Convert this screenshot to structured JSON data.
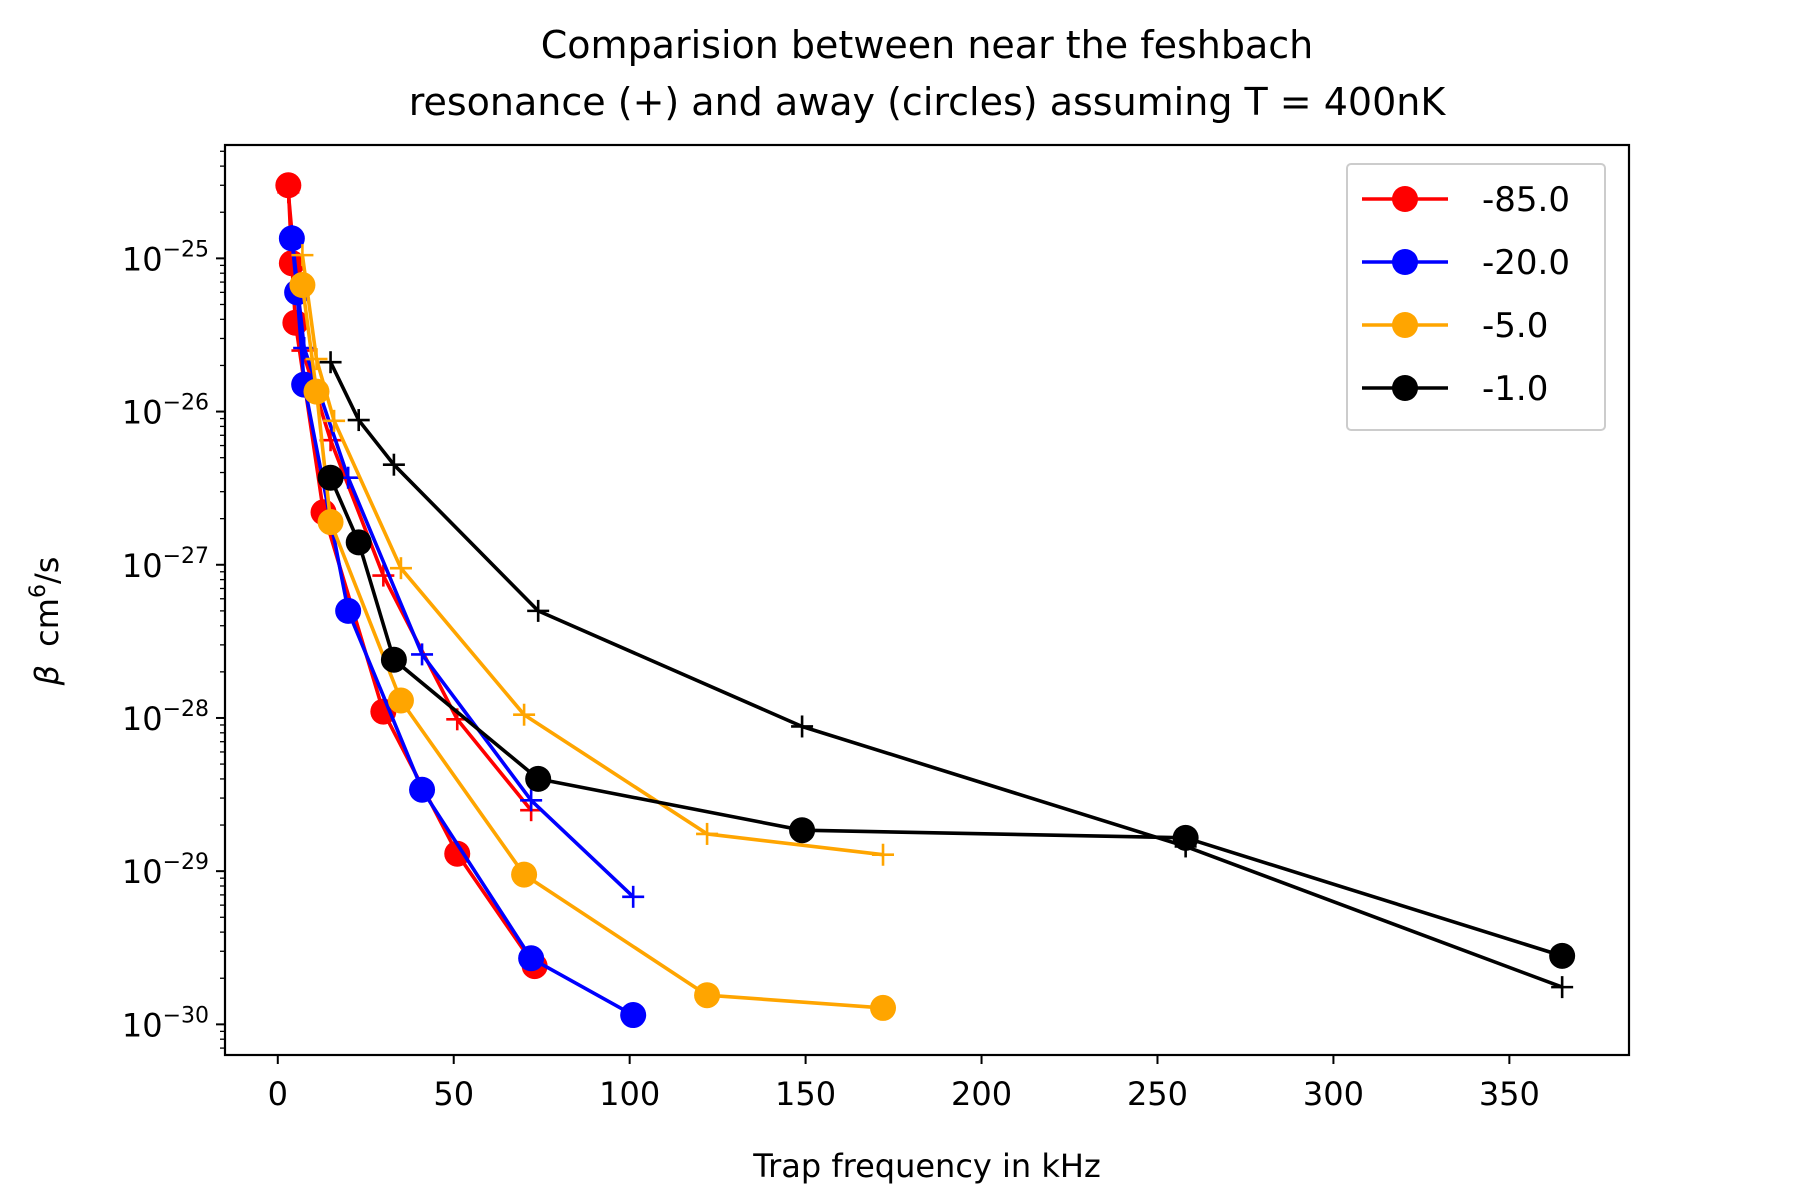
{
  "chart_data": {
    "type": "line",
    "title_line1": "Comparision between near the feshbach",
    "title_line2": "resonance (+) and away (circles) assuming T = 400nK",
    "xlabel": "Trap frequency in kHz",
    "ylabel_symbol": "β",
    "ylabel_unit": "cm",
    "ylabel_exp": "6",
    "ylabel_tail": "/s",
    "xlim": [
      -15,
      384
    ],
    "ylim_log10": [
      -30.2,
      -24.26
    ],
    "y_scale": "log",
    "x_ticks": [
      0,
      50,
      100,
      150,
      200,
      250,
      300,
      350
    ],
    "y_tick_exponents": [
      -25,
      -26,
      -27,
      -28,
      -29,
      -30
    ],
    "y_tick_base": "10",
    "legend_position": "top-right",
    "series": [
      {
        "name": "-85.0",
        "color": "#ff0000",
        "circles": [
          [
            3,
            3e-25
          ],
          [
            4,
            9.3e-26
          ],
          [
            5,
            3.8e-26
          ],
          [
            13,
            2.2e-27
          ],
          [
            30,
            1.1e-28
          ],
          [
            51,
            1.3e-29
          ],
          [
            73,
            2.4e-30
          ]
        ],
        "crosses": [
          [
            3,
            2.7e-25
          ],
          [
            7,
            2.5e-26
          ],
          [
            15,
            6.5e-27
          ],
          [
            30,
            8.5e-28
          ],
          [
            51,
            9.8e-29
          ],
          [
            72,
            2.5e-29
          ]
        ]
      },
      {
        "name": "-20.0",
        "color": "#0000ff",
        "circles": [
          [
            4,
            1.35e-25
          ],
          [
            5.5,
            6e-26
          ],
          [
            7.5,
            1.5e-26
          ],
          [
            20,
            5e-28
          ],
          [
            41,
            3.4e-29
          ],
          [
            72,
            2.7e-30
          ],
          [
            101,
            1.15e-30
          ]
        ],
        "crosses": [
          [
            4,
            1.4e-25
          ],
          [
            7.5,
            2.6e-26
          ],
          [
            20,
            3.7e-27
          ],
          [
            41,
            2.6e-28
          ],
          [
            72,
            2.9e-29
          ],
          [
            101,
            6.8e-30
          ]
        ]
      },
      {
        "name": "-5.0",
        "color": "#ffa500",
        "circles": [
          [
            7,
            6.7e-26
          ],
          [
            11,
            1.35e-26
          ],
          [
            15,
            1.9e-27
          ],
          [
            35,
            1.3e-28
          ],
          [
            70,
            9.5e-30
          ],
          [
            122,
            1.55e-30
          ],
          [
            172,
            1.28e-30
          ]
        ],
        "crosses": [
          [
            7,
            1.05e-25
          ],
          [
            11,
            2.2e-26
          ],
          [
            16,
            8.7e-27
          ],
          [
            35,
            9.5e-28
          ],
          [
            70,
            1.05e-28
          ],
          [
            122,
            1.75e-29
          ],
          [
            172,
            1.28e-29
          ]
        ]
      },
      {
        "name": "-1.0",
        "color": "#000000",
        "circles": [
          [
            15,
            3.7e-27
          ],
          [
            23,
            1.4e-27
          ],
          [
            33,
            2.4e-28
          ],
          [
            74,
            4e-29
          ],
          [
            149,
            1.85e-29
          ],
          [
            258,
            1.65e-29
          ],
          [
            365,
            2.8e-30
          ]
        ],
        "crosses": [
          [
            15,
            2.1e-26
          ],
          [
            23,
            8.8e-27
          ],
          [
            33,
            4.5e-27
          ],
          [
            74,
            5e-28
          ],
          [
            149,
            8.8e-29
          ],
          [
            258,
            1.45e-29
          ],
          [
            365,
            1.75e-30
          ]
        ]
      }
    ]
  }
}
